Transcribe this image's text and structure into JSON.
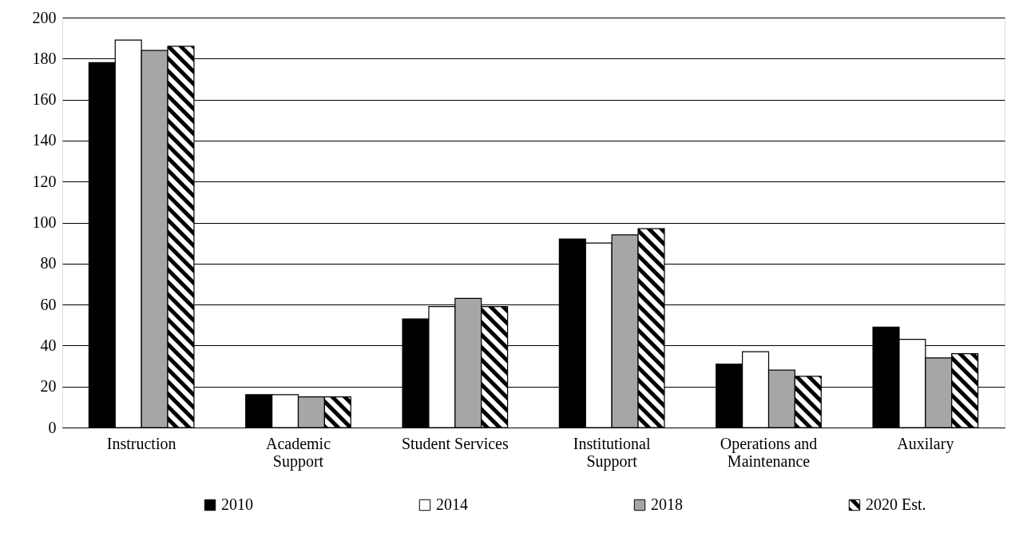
{
  "chart_data": {
    "type": "bar",
    "categories": [
      "Instruction",
      "Academic\nSupport",
      "Student Services",
      "Institutional\nSupport",
      "Operations and\nMaintenance",
      "Auxilary"
    ],
    "series": [
      {
        "name": "2010",
        "color": "#000000",
        "values": [
          178,
          16,
          53,
          92,
          31,
          49
        ]
      },
      {
        "name": "2014",
        "color": "#ffffff",
        "values": [
          189,
          16,
          59,
          90,
          37,
          43
        ]
      },
      {
        "name": "2018",
        "color": "#a6a6a6",
        "values": [
          184,
          15,
          63,
          94,
          28,
          34
        ]
      },
      {
        "name": "2020 Est.",
        "color": "#000000",
        "values": [
          186,
          15,
          59,
          97,
          25,
          36
        ]
      }
    ],
    "ylim": [
      0,
      200
    ],
    "yticks": [
      0,
      20,
      40,
      60,
      80,
      100,
      120,
      140,
      160,
      180,
      200
    ],
    "grid": "y",
    "legend": "bottom"
  }
}
